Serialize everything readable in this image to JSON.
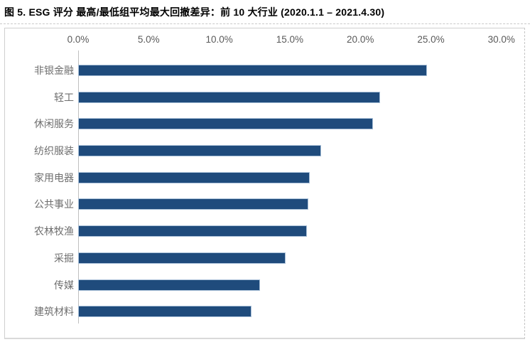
{
  "title": "图 5. ESG 评分 最高/最低组平均最大回撤差异：前 10 大行业 (2020.1.1 – 2021.4.30)",
  "chart_data": {
    "type": "bar",
    "orientation": "horizontal",
    "title": "图 5. ESG 评分 最高/最低组平均最大回撤差异：前 10 大行业 (2020.1.1 – 2021.4.30)",
    "categories": [
      "非银金融",
      "轻工",
      "休闲服务",
      "纺织服装",
      "家用电器",
      "公共事业",
      "农林牧渔",
      "采掘",
      "传媒",
      "建筑材料"
    ],
    "values": [
      24.6,
      21.3,
      20.8,
      17.1,
      16.3,
      16.2,
      16.1,
      14.6,
      12.8,
      12.2
    ],
    "value_unit": "%",
    "x_ticks": [
      "0.0%",
      "5.0%",
      "10.0%",
      "15.0%",
      "20.0%",
      "25.0%",
      "30.0%"
    ],
    "xlim": [
      0,
      30
    ],
    "axis_position": "top",
    "grid": false,
    "legend": "none",
    "bar_color": "#1F4B7C",
    "bar_border_color": "#A9C0D8",
    "axis_text_color": "#595959",
    "category_text_color": "#6E6E6E"
  }
}
